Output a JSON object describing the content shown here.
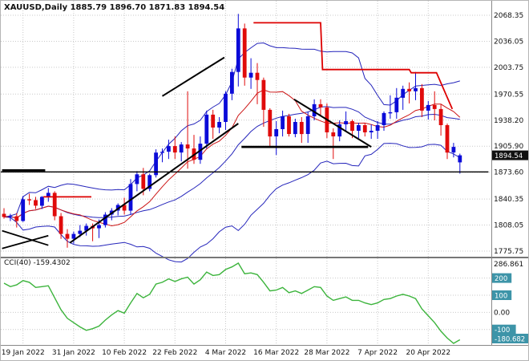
{
  "header": {
    "title": "XAUUSD,Daily 1885.79 1896.70 1871.83 1894.54",
    "symbol": "XAUUSD",
    "timeframe": "Daily",
    "open": "1885.79",
    "high": "1896.70",
    "low": "1871.83",
    "close": "1894.54"
  },
  "price_axis": {
    "current_badge": "1894.54"
  },
  "indicator": {
    "label": "CCI(40) -159.4302",
    "name": "CCI",
    "period": 40,
    "current_value": "-159.4302",
    "axis": {
      "max": "286.861",
      "zero": "0.00",
      "min": "-180.682",
      "level_badges": [
        "200",
        "100",
        "-100"
      ]
    }
  },
  "colors": {
    "up": "#0b0bd8",
    "down": "#e00b0b",
    "bollinger": "#2525bb",
    "ma": "#cc1515",
    "cci": "#3cb43c",
    "grid": "#c9c9c9",
    "badge_price_bg": "#111111",
    "badge_level_bg": "#3d94a8",
    "black": "#000000",
    "red_line": "#dd0000"
  },
  "chart_data": {
    "type": "candlestick",
    "title": "XAUUSD Daily candlestick chart with Bollinger Bands, red moving average, black/red trendlines and CCI(40) subpanel",
    "price_axis_labels": [
      "2068.35",
      "2036.05",
      "2003.75",
      "1970.55",
      "1938.20",
      "1905.90",
      "1873.60",
      "1840.35",
      "1808.05",
      "1775.75"
    ],
    "current_price": 1894.54,
    "x_ticks": {
      "labels": [
        "19 Jan 2022",
        "31 Jan 2022",
        "10 Feb 2022",
        "22 Feb 2022",
        "4 Mar 2022",
        "16 Mar 2022",
        "28 Mar 2022",
        "7 Apr 2022",
        "20 Apr 2022"
      ],
      "bar_index": [
        3,
        11,
        19,
        27,
        35,
        43,
        51,
        59,
        67
      ]
    },
    "candles_ohlc": [
      [
        1822,
        1829,
        1816,
        1818
      ],
      [
        1818,
        1822,
        1813,
        1819
      ],
      [
        1819,
        1823,
        1805,
        1813
      ],
      [
        1813,
        1844,
        1812,
        1840
      ],
      [
        1840,
        1847,
        1833,
        1839
      ],
      [
        1839,
        1843,
        1828,
        1832
      ],
      [
        1832,
        1844,
        1828,
        1843
      ],
      [
        1843,
        1854,
        1837,
        1848
      ],
      [
        1848,
        1850,
        1814,
        1819
      ],
      [
        1819,
        1823,
        1791,
        1797
      ],
      [
        1797,
        1803,
        1780,
        1791
      ],
      [
        1791,
        1800,
        1785,
        1797
      ],
      [
        1797,
        1808,
        1793,
        1801
      ],
      [
        1801,
        1810,
        1795,
        1807
      ],
      [
        1807,
        1810,
        1788,
        1804
      ],
      [
        1804,
        1815,
        1792,
        1808
      ],
      [
        1808,
        1824,
        1805,
        1821
      ],
      [
        1821,
        1829,
        1814,
        1826
      ],
      [
        1826,
        1835,
        1820,
        1833
      ],
      [
        1833,
        1842,
        1821,
        1826
      ],
      [
        1826,
        1865,
        1821,
        1859
      ],
      [
        1859,
        1875,
        1850,
        1871
      ],
      [
        1871,
        1879,
        1845,
        1853
      ],
      [
        1853,
        1872,
        1850,
        1870
      ],
      [
        1870,
        1902,
        1867,
        1898
      ],
      [
        1898,
        1903,
        1886,
        1899
      ],
      [
        1899,
        1914,
        1890,
        1906
      ],
      [
        1906,
        1918,
        1890,
        1898
      ],
      [
        1898,
        1911,
        1887,
        1908
      ],
      [
        1908,
        1974,
        1878,
        1903
      ],
      [
        1903,
        1920,
        1884,
        1889
      ],
      [
        1889,
        1918,
        1884,
        1909
      ],
      [
        1909,
        1950,
        1903,
        1945
      ],
      [
        1945,
        1951,
        1915,
        1929
      ],
      [
        1929,
        1942,
        1922,
        1936
      ],
      [
        1936,
        1974,
        1926,
        1971
      ],
      [
        1971,
        2002,
        1963,
        1998
      ],
      [
        1998,
        2070,
        1980,
        2052
      ],
      [
        2052,
        2058,
        1981,
        1991
      ],
      [
        1991,
        2015,
        1977,
        1997
      ],
      [
        1997,
        2009,
        1958,
        1988
      ],
      [
        1988,
        1991,
        1930,
        1951
      ],
      [
        1951,
        1953,
        1906,
        1918
      ],
      [
        1918,
        1937,
        1895,
        1927
      ],
      [
        1927,
        1950,
        1918,
        1943
      ],
      [
        1943,
        1946,
        1918,
        1921
      ],
      [
        1921,
        1940,
        1917,
        1936
      ],
      [
        1936,
        1942,
        1910,
        1921
      ],
      [
        1921,
        1948,
        1910,
        1943
      ],
      [
        1943,
        1964,
        1938,
        1958
      ],
      [
        1958,
        1964,
        1944,
        1954
      ],
      [
        1954,
        1959,
        1916,
        1923
      ],
      [
        1923,
        1928,
        1890,
        1918
      ],
      [
        1918,
        1938,
        1912,
        1933
      ],
      [
        1933,
        1949,
        1925,
        1937
      ],
      [
        1937,
        1939,
        1916,
        1925
      ],
      [
        1925,
        1935,
        1916,
        1932
      ],
      [
        1932,
        1935,
        1918,
        1923
      ],
      [
        1923,
        1933,
        1915,
        1925
      ],
      [
        1925,
        1937,
        1915,
        1932
      ],
      [
        1932,
        1949,
        1925,
        1947
      ],
      [
        1947,
        1969,
        1940,
        1948
      ],
      [
        1948,
        1978,
        1940,
        1966
      ],
      [
        1966,
        1981,
        1951,
        1977
      ],
      [
        1977,
        1985,
        1959,
        1974
      ],
      [
        1974,
        1998,
        1963,
        1978
      ],
      [
        1978,
        1983,
        1942,
        1950
      ],
      [
        1950,
        1962,
        1939,
        1957
      ],
      [
        1957,
        1974,
        1938,
        1952
      ],
      [
        1952,
        1958,
        1919,
        1932
      ],
      [
        1932,
        1934,
        1890,
        1898
      ],
      [
        1898,
        1910,
        1892,
        1905
      ],
      [
        1885.79,
        1896.7,
        1871.83,
        1894.54
      ]
    ],
    "overlays": [
      {
        "name": "bollinger-bands",
        "period": 20,
        "deviation": 2
      },
      {
        "name": "moving-average",
        "period": 10
      }
    ],
    "annotations": [
      {
        "name": "left-wedge-line-upper",
        "color": "#000000",
        "w": 1.8,
        "pts": [
          [
            -0.3,
            1801
          ],
          [
            7,
            1783
          ]
        ]
      },
      {
        "name": "left-wedge-line-lower",
        "color": "#000000",
        "w": 1.8,
        "pts": [
          [
            -0.3,
            1779
          ],
          [
            7,
            1795
          ]
        ]
      },
      {
        "name": "left-resistance-segment",
        "color": "#000000",
        "w": 2.5,
        "pts": [
          [
            -0.3,
            1876
          ],
          [
            6.5,
            1876
          ]
        ]
      },
      {
        "name": "horizontal-line-1874",
        "color": "#000000",
        "w": 1.4,
        "pts": [
          [
            -0.5,
            1874
          ],
          [
            76.5,
            1874
          ]
        ]
      },
      {
        "name": "red-support-segment",
        "color": "#dd0000",
        "w": 1.8,
        "pts": [
          [
            6.2,
            1843
          ],
          [
            13.8,
            1843
          ]
        ]
      },
      {
        "name": "ascending-trendline",
        "color": "#000000",
        "w": 2,
        "pts": [
          [
            10.4,
            1786
          ],
          [
            37,
            1934
          ]
        ]
      },
      {
        "name": "steep-ascending-trendline",
        "color": "#000000",
        "w": 2,
        "pts": [
          [
            25,
            1968
          ],
          [
            34.8,
            2016
          ]
        ]
      },
      {
        "name": "horizontal-support-line",
        "color": "#000000",
        "w": 2.8,
        "pts": [
          [
            37.5,
            1905
          ],
          [
            57.5,
            1905
          ]
        ]
      },
      {
        "name": "descending-trendline",
        "color": "#000000",
        "w": 2,
        "pts": [
          [
            45.8,
            1964
          ],
          [
            58,
            1905
          ]
        ]
      },
      {
        "name": "red-step-resistance-line",
        "color": "#dd0000",
        "w": 1.8,
        "pts": [
          [
            39.4,
            2059
          ],
          [
            50,
            2059
          ],
          [
            50.3,
            2001
          ],
          [
            64,
            2001
          ],
          [
            64.3,
            1997
          ],
          [
            68.3,
            1997
          ],
          [
            70.8,
            1952
          ]
        ]
      }
    ],
    "indicator_pane": {
      "type": "line",
      "name": "CCI",
      "period": 40,
      "current_value": -159.4302,
      "scale_max": 286.861,
      "scale_min": -180.682,
      "level_lines": [
        200,
        100,
        0,
        -100
      ],
      "color": "#3cb43c",
      "values": [
        170,
        150,
        160,
        185,
        175,
        145,
        150,
        155,
        85,
        15,
        -35,
        -60,
        -85,
        -105,
        -95,
        -80,
        -45,
        -15,
        10,
        -5,
        55,
        110,
        85,
        105,
        165,
        175,
        195,
        180,
        195,
        205,
        165,
        190,
        235,
        215,
        220,
        250,
        265,
        286.861,
        225,
        230,
        220,
        175,
        125,
        130,
        145,
        115,
        125,
        110,
        130,
        150,
        145,
        95,
        70,
        80,
        90,
        70,
        70,
        55,
        45,
        55,
        75,
        80,
        95,
        105,
        95,
        80,
        20,
        -20,
        -60,
        -110,
        -150,
        -180.682,
        -159.43
      ]
    }
  }
}
